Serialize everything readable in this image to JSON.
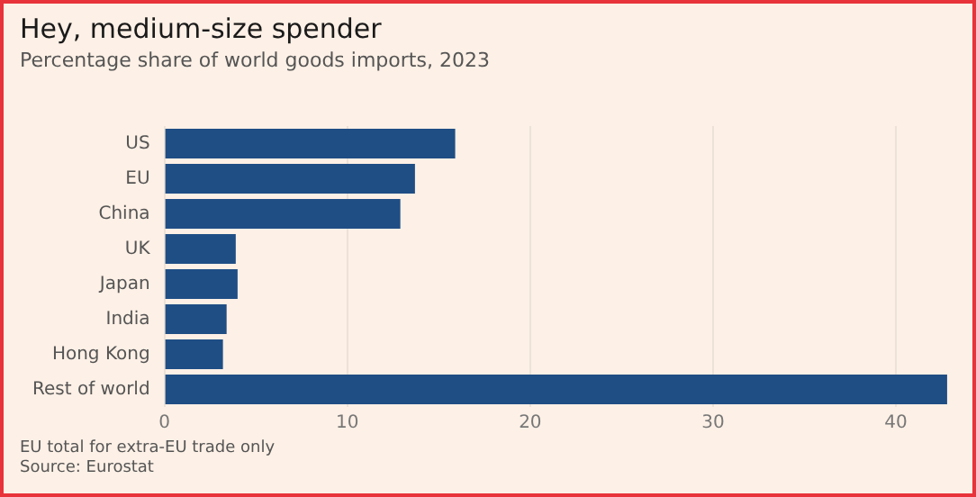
{
  "chart_data": {
    "type": "bar",
    "orientation": "horizontal",
    "title": "Hey, medium-size spender",
    "subtitle": "Percentage share of world goods imports, 2023",
    "categories": [
      "US",
      "EU",
      "China",
      "UK",
      "Japan",
      "India",
      "Hong Kong",
      "Rest of world"
    ],
    "values": [
      15.9,
      13.7,
      12.9,
      3.9,
      4.0,
      3.4,
      3.2,
      42.8
    ],
    "color": "#1f4e85",
    "xlim": [
      0,
      43
    ],
    "xticks": [
      0,
      10,
      20,
      30,
      40
    ],
    "grid": "x",
    "legend": false,
    "annotations": [
      "EU total for extra-EU trade only",
      "Source: Eurostat"
    ]
  }
}
